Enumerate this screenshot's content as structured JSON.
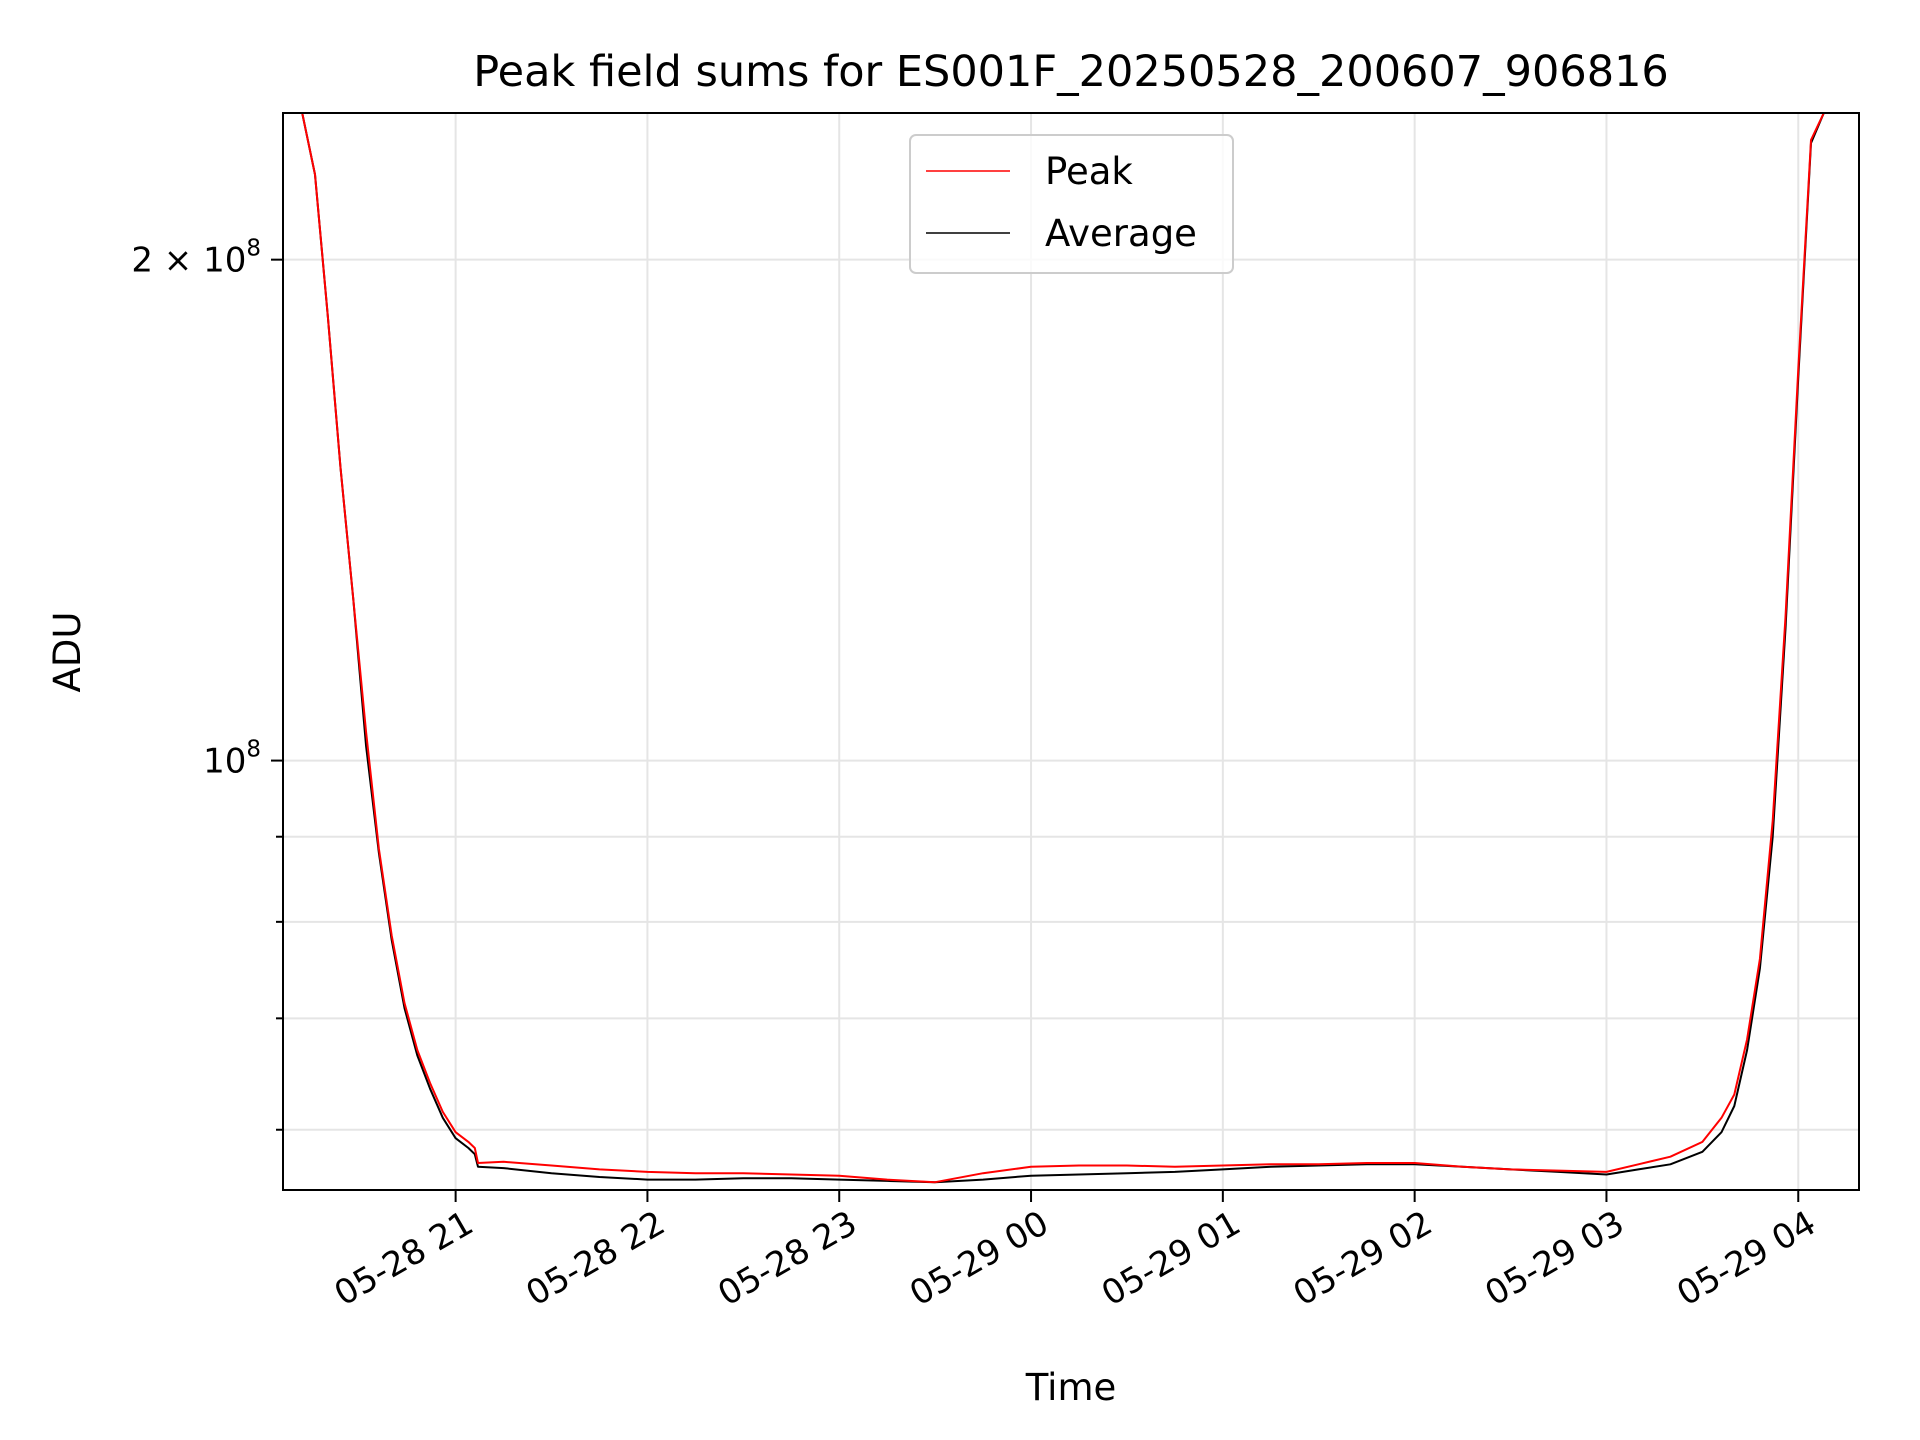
{
  "chart_data": {
    "type": "line",
    "title": "Peak field sums for ES001F_20250528_200607_906816",
    "xlabel": "Time",
    "ylabel": "ADU",
    "yscale": "log",
    "grid": true,
    "legend": {
      "placement": "top-center",
      "entries": [
        "Peak",
        "Average"
      ]
    },
    "xlim": [
      "2025-05-28 20:06",
      "2025-05-29 04:19"
    ],
    "ylim": [
      55200000,
      245000000
    ],
    "x_ticks": [
      {
        "t": "2025-05-28 21:00",
        "label": "05-28 21"
      },
      {
        "t": "2025-05-28 22:00",
        "label": "05-28 22"
      },
      {
        "t": "2025-05-28 23:00",
        "label": "05-28 23"
      },
      {
        "t": "2025-05-29 00:00",
        "label": "05-29 00"
      },
      {
        "t": "2025-05-29 01:00",
        "label": "05-29 01"
      },
      {
        "t": "2025-05-29 02:00",
        "label": "05-29 02"
      },
      {
        "t": "2025-05-29 03:00",
        "label": "05-29 03"
      },
      {
        "t": "2025-05-29 04:00",
        "label": "05-29 04"
      }
    ],
    "y_ticks": [
      {
        "value": 200000000,
        "base": "2 × 10",
        "exp": "8"
      },
      {
        "value": 100000000,
        "base": "10",
        "exp": "8"
      }
    ],
    "y_minor_ticks": [
      60000000,
      70000000,
      80000000,
      90000000
    ],
    "series": [
      {
        "name": "Average",
        "color": "#000000",
        "x": [
          "2025-05-28 20:06",
          "2025-05-28 20:12",
          "2025-05-28 20:16",
          "2025-05-28 20:20",
          "2025-05-28 20:24",
          "2025-05-28 20:28",
          "2025-05-28 20:32",
          "2025-05-28 20:36",
          "2025-05-28 20:40",
          "2025-05-28 20:44",
          "2025-05-28 20:48",
          "2025-05-28 20:52",
          "2025-05-28 20:56",
          "2025-05-28 21:00",
          "2025-05-28 21:04",
          "2025-05-28 21:06",
          "2025-05-28 21:07",
          "2025-05-28 21:15",
          "2025-05-28 21:30",
          "2025-05-28 21:45",
          "2025-05-28 22:00",
          "2025-05-28 22:15",
          "2025-05-28 22:30",
          "2025-05-28 22:45",
          "2025-05-28 23:00",
          "2025-05-28 23:15",
          "2025-05-28 23:30",
          "2025-05-28 23:45",
          "2025-05-29 00:00",
          "2025-05-29 00:15",
          "2025-05-29 00:30",
          "2025-05-29 00:45",
          "2025-05-29 01:00",
          "2025-05-29 01:15",
          "2025-05-29 01:30",
          "2025-05-29 01:45",
          "2025-05-29 02:00",
          "2025-05-29 02:15",
          "2025-05-29 02:30",
          "2025-05-29 02:45",
          "2025-05-29 03:00",
          "2025-05-29 03:10",
          "2025-05-29 03:20",
          "2025-05-29 03:30",
          "2025-05-29 03:36",
          "2025-05-29 03:40",
          "2025-05-29 03:44",
          "2025-05-29 03:48",
          "2025-05-29 03:52",
          "2025-05-29 03:56",
          "2025-05-29 04:00",
          "2025-05-29 04:04",
          "2025-05-29 04:08"
        ],
        "values": [
          245000000,
          245000000,
          225000000,
          185000000,
          150000000,
          125000000,
          102000000,
          88000000,
          78000000,
          71000000,
          66500000,
          63500000,
          61000000,
          59300000,
          58500000,
          58000000,
          57000000,
          56900000,
          56500000,
          56200000,
          56000000,
          56000000,
          56100000,
          56100000,
          56000000,
          55900000,
          55800000,
          56000000,
          56300000,
          56400000,
          56500000,
          56600000,
          56800000,
          57000000,
          57100000,
          57200000,
          57200000,
          57000000,
          56800000,
          56600000,
          56400000,
          56800000,
          57200000,
          58200000,
          59800000,
          62000000,
          67000000,
          75000000,
          90000000,
          120000000,
          170000000,
          235000000,
          245000000
        ]
      },
      {
        "name": "Peak",
        "color": "#ff0000",
        "x": [
          "2025-05-28 20:06",
          "2025-05-28 20:12",
          "2025-05-28 20:16",
          "2025-05-28 20:20",
          "2025-05-28 20:24",
          "2025-05-28 20:28",
          "2025-05-28 20:32",
          "2025-05-28 20:36",
          "2025-05-28 20:40",
          "2025-05-28 20:44",
          "2025-05-28 20:48",
          "2025-05-28 20:52",
          "2025-05-28 20:56",
          "2025-05-28 21:00",
          "2025-05-28 21:04",
          "2025-05-28 21:06",
          "2025-05-28 21:07",
          "2025-05-28 21:15",
          "2025-05-28 21:30",
          "2025-05-28 21:45",
          "2025-05-28 22:00",
          "2025-05-28 22:15",
          "2025-05-28 22:30",
          "2025-05-28 22:45",
          "2025-05-28 23:00",
          "2025-05-28 23:15",
          "2025-05-28 23:30",
          "2025-05-28 23:45",
          "2025-05-29 00:00",
          "2025-05-29 00:15",
          "2025-05-29 00:30",
          "2025-05-29 00:45",
          "2025-05-29 01:00",
          "2025-05-29 01:15",
          "2025-05-29 01:30",
          "2025-05-29 01:45",
          "2025-05-29 02:00",
          "2025-05-29 02:15",
          "2025-05-29 02:30",
          "2025-05-29 02:45",
          "2025-05-29 03:00",
          "2025-05-29 03:10",
          "2025-05-29 03:20",
          "2025-05-29 03:30",
          "2025-05-29 03:36",
          "2025-05-29 03:40",
          "2025-05-29 03:44",
          "2025-05-29 03:48",
          "2025-05-29 03:52",
          "2025-05-29 03:56",
          "2025-05-29 04:00",
          "2025-05-29 04:04",
          "2025-05-29 04:08"
        ],
        "values": [
          245000000,
          245000000,
          225000000,
          185000000,
          150000000,
          125000000,
          104000000,
          88500000,
          78500000,
          71500000,
          67000000,
          64000000,
          61500000,
          59800000,
          59000000,
          58500000,
          57300000,
          57400000,
          57100000,
          56800000,
          56600000,
          56500000,
          56500000,
          56400000,
          56300000,
          56000000,
          55800000,
          56500000,
          57000000,
          57100000,
          57100000,
          57000000,
          57100000,
          57200000,
          57200000,
          57300000,
          57300000,
          57000000,
          56800000,
          56700000,
          56600000,
          57200000,
          57800000,
          59000000,
          61000000,
          63000000,
          68000000,
          76000000,
          92000000,
          122000000,
          172000000,
          236000000,
          245000000
        ]
      }
    ]
  }
}
